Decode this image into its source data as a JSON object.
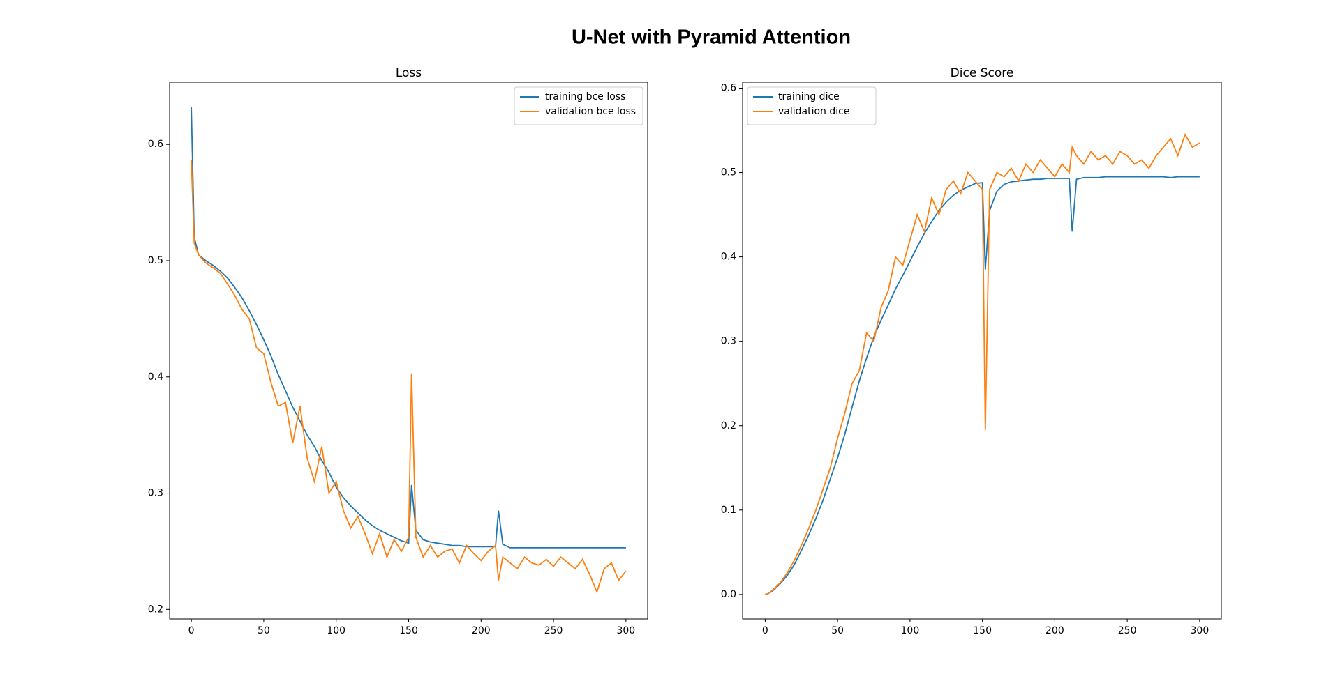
{
  "title": "U-Net with Pyramid Attention",
  "chart_data": [
    {
      "type": "line",
      "title": "Loss",
      "legend": "upper right",
      "xlim": [
        -15,
        315
      ],
      "ylim": [
        0.1918,
        0.6535
      ],
      "xticks": [
        0,
        50,
        100,
        150,
        200,
        250,
        300
      ],
      "yticks": [
        0.2,
        0.3,
        0.4,
        0.5,
        0.6
      ],
      "x": [
        0,
        2,
        5,
        10,
        15,
        20,
        25,
        30,
        35,
        40,
        45,
        50,
        55,
        60,
        65,
        70,
        75,
        80,
        85,
        90,
        95,
        100,
        105,
        110,
        115,
        120,
        125,
        130,
        135,
        140,
        145,
        150,
        152,
        155,
        160,
        165,
        170,
        175,
        180,
        185,
        190,
        195,
        200,
        205,
        210,
        212,
        215,
        220,
        225,
        230,
        235,
        240,
        245,
        250,
        255,
        260,
        265,
        270,
        275,
        280,
        285,
        290,
        295,
        300
      ],
      "series": [
        {
          "name": "training bce loss",
          "color": "#1f77b4",
          "values": [
            0.632,
            0.52,
            0.505,
            0.5,
            0.496,
            0.491,
            0.485,
            0.477,
            0.468,
            0.457,
            0.445,
            0.432,
            0.418,
            0.402,
            0.388,
            0.374,
            0.362,
            0.35,
            0.34,
            0.328,
            0.318,
            0.305,
            0.296,
            0.289,
            0.283,
            0.277,
            0.272,
            0.268,
            0.265,
            0.262,
            0.259,
            0.257,
            0.307,
            0.268,
            0.26,
            0.258,
            0.257,
            0.256,
            0.255,
            0.255,
            0.254,
            0.254,
            0.254,
            0.254,
            0.254,
            0.285,
            0.256,
            0.253,
            0.253,
            0.253,
            0.253,
            0.253,
            0.253,
            0.253,
            0.253,
            0.253,
            0.253,
            0.253,
            0.253,
            0.253,
            0.253,
            0.253,
            0.253,
            0.253
          ]
        },
        {
          "name": "validation bce loss",
          "color": "#ff7f0e",
          "values": [
            0.587,
            0.515,
            0.505,
            0.498,
            0.494,
            0.489,
            0.48,
            0.47,
            0.458,
            0.45,
            0.425,
            0.42,
            0.395,
            0.375,
            0.378,
            0.343,
            0.375,
            0.33,
            0.31,
            0.34,
            0.3,
            0.31,
            0.285,
            0.27,
            0.28,
            0.265,
            0.248,
            0.265,
            0.245,
            0.26,
            0.25,
            0.262,
            0.403,
            0.262,
            0.245,
            0.255,
            0.245,
            0.25,
            0.252,
            0.24,
            0.255,
            0.248,
            0.242,
            0.25,
            0.255,
            0.225,
            0.245,
            0.24,
            0.235,
            0.245,
            0.24,
            0.238,
            0.243,
            0.237,
            0.245,
            0.24,
            0.235,
            0.243,
            0.23,
            0.215,
            0.235,
            0.24,
            0.225,
            0.233
          ]
        }
      ]
    },
    {
      "type": "line",
      "title": "Dice Score",
      "legend": "upper left",
      "xlim": [
        -15.6,
        315
      ],
      "ylim": [
        -0.029,
        0.607
      ],
      "xticks": [
        0,
        50,
        100,
        150,
        200,
        250,
        300
      ],
      "yticks": [
        {
          "value": 0,
          "label": "0.0"
        },
        0.1,
        0.2,
        0.3,
        0.4,
        0.5,
        0.6
      ],
      "x": [
        0,
        2,
        5,
        10,
        15,
        20,
        25,
        30,
        35,
        40,
        45,
        50,
        55,
        60,
        65,
        70,
        75,
        80,
        85,
        90,
        95,
        100,
        105,
        110,
        115,
        120,
        125,
        130,
        135,
        140,
        145,
        150,
        152,
        155,
        160,
        165,
        170,
        175,
        180,
        185,
        190,
        195,
        200,
        205,
        210,
        212,
        215,
        220,
        225,
        230,
        235,
        240,
        245,
        250,
        255,
        260,
        265,
        270,
        275,
        280,
        285,
        290,
        295,
        300
      ],
      "series": [
        {
          "name": "training dice",
          "color": "#1f77b4",
          "values": [
            0,
            0.001,
            0.004,
            0.012,
            0.022,
            0.035,
            0.052,
            0.07,
            0.09,
            0.112,
            0.137,
            0.162,
            0.19,
            0.222,
            0.253,
            0.28,
            0.305,
            0.325,
            0.343,
            0.362,
            0.378,
            0.395,
            0.412,
            0.428,
            0.442,
            0.455,
            0.465,
            0.473,
            0.479,
            0.483,
            0.487,
            0.488,
            0.385,
            0.455,
            0.478,
            0.486,
            0.489,
            0.49,
            0.491,
            0.492,
            0.492,
            0.493,
            0.493,
            0.493,
            0.493,
            0.43,
            0.492,
            0.494,
            0.494,
            0.494,
            0.495,
            0.495,
            0.495,
            0.495,
            0.495,
            0.495,
            0.495,
            0.495,
            0.495,
            0.494,
            0.495,
            0.495,
            0.495,
            0.495
          ]
        },
        {
          "name": "validation dice",
          "color": "#ff7f0e",
          "values": [
            0,
            0.001,
            0.005,
            0.013,
            0.025,
            0.04,
            0.058,
            0.078,
            0.1,
            0.125,
            0.15,
            0.185,
            0.215,
            0.25,
            0.265,
            0.31,
            0.3,
            0.34,
            0.36,
            0.4,
            0.39,
            0.42,
            0.45,
            0.43,
            0.47,
            0.45,
            0.48,
            0.49,
            0.475,
            0.5,
            0.49,
            0.48,
            0.195,
            0.48,
            0.5,
            0.495,
            0.505,
            0.49,
            0.51,
            0.5,
            0.515,
            0.505,
            0.495,
            0.51,
            0.5,
            0.53,
            0.52,
            0.51,
            0.525,
            0.515,
            0.52,
            0.51,
            0.525,
            0.52,
            0.51,
            0.515,
            0.505,
            0.52,
            0.53,
            0.54,
            0.52,
            0.545,
            0.53,
            0.535
          ]
        }
      ]
    }
  ]
}
